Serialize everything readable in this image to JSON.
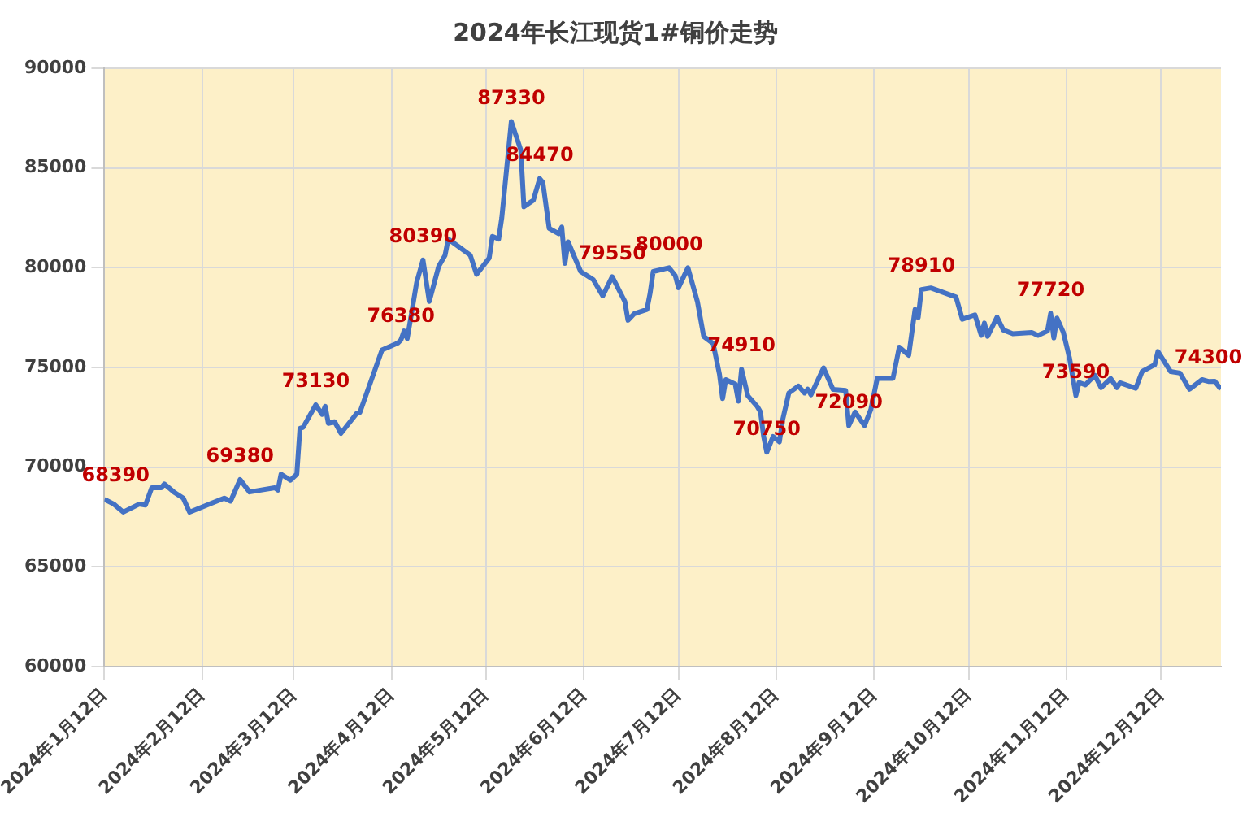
{
  "chart_data": {
    "type": "line",
    "title": "2024年长江现货1#铜价走势",
    "x": [
      "2024-01-12",
      "2024-01-15",
      "2024-01-18",
      "2024-01-23",
      "2024-01-25",
      "2024-01-27",
      "2024-01-30",
      "2024-01-31",
      "2024-02-03",
      "2024-02-06",
      "2024-02-08",
      "2024-02-19",
      "2024-02-21",
      "2024-02-24",
      "2024-02-27",
      "2024-03-06",
      "2024-03-07",
      "2024-03-08",
      "2024-03-11",
      "2024-03-13",
      "2024-03-14",
      "2024-03-15",
      "2024-03-19",
      "2024-03-21",
      "2024-03-22",
      "2024-03-23",
      "2024-03-25",
      "2024-03-27",
      "2024-04-01",
      "2024-04-02",
      "2024-04-09",
      "2024-04-14",
      "2024-04-15",
      "2024-04-16",
      "2024-04-17",
      "2024-04-18",
      "2024-04-20",
      "2024-04-22",
      "2024-04-24",
      "2024-04-27",
      "2024-04-29",
      "2024-04-30",
      "2024-05-07",
      "2024-05-09",
      "2024-05-13",
      "2024-05-14",
      "2024-05-16",
      "2024-05-17",
      "2024-05-20",
      "2024-05-23",
      "2024-05-24",
      "2024-05-27",
      "2024-05-29",
      "2024-05-30",
      "2024-06-01",
      "2024-06-04",
      "2024-06-05",
      "2024-06-06",
      "2024-06-07",
      "2024-06-11",
      "2024-06-15",
      "2024-06-18",
      "2024-06-21",
      "2024-06-25",
      "2024-06-26",
      "2024-06-28",
      "2024-07-02",
      "2024-07-03",
      "2024-07-04",
      "2024-07-09",
      "2024-07-11",
      "2024-07-12",
      "2024-07-15",
      "2024-07-18",
      "2024-07-20",
      "2024-07-23",
      "2024-07-25",
      "2024-07-26",
      "2024-07-27",
      "2024-07-30",
      "2024-07-31",
      "2024-08-01",
      "2024-08-03",
      "2024-08-06",
      "2024-08-07",
      "2024-08-08",
      "2024-08-09",
      "2024-08-11",
      "2024-08-13",
      "2024-08-14",
      "2024-08-16",
      "2024-08-19",
      "2024-08-21",
      "2024-08-22",
      "2024-08-23",
      "2024-08-27",
      "2024-08-30",
      "2024-09-03",
      "2024-09-04",
      "2024-09-06",
      "2024-09-09",
      "2024-09-11",
      "2024-09-13",
      "2024-09-18",
      "2024-09-20",
      "2024-09-23",
      "2024-09-25",
      "2024-09-26",
      "2024-09-27",
      "2024-09-30",
      "2024-10-08",
      "2024-10-10",
      "2024-10-14",
      "2024-10-16",
      "2024-10-17",
      "2024-10-18",
      "2024-10-21",
      "2024-10-23",
      "2024-10-26",
      "2024-11-01",
      "2024-11-03",
      "2024-11-06",
      "2024-11-07",
      "2024-11-08",
      "2024-11-09",
      "2024-11-11",
      "2024-11-13",
      "2024-11-15",
      "2024-11-16",
      "2024-11-18",
      "2024-11-21",
      "2024-11-23",
      "2024-11-26",
      "2024-11-28",
      "2024-11-29",
      "2024-12-04",
      "2024-12-06",
      "2024-12-10",
      "2024-12-11",
      "2024-12-15",
      "2024-12-18",
      "2024-12-21",
      "2024-12-25",
      "2024-12-27",
      "2024-12-29",
      "2024-12-31"
    ],
    "series": [
      {
        "color": "#4472c4",
        "values": [
          68390,
          68150,
          67750,
          68150,
          68100,
          68970,
          68970,
          69160,
          68760,
          68450,
          67750,
          68450,
          68300,
          69380,
          68760,
          68970,
          68850,
          69650,
          69350,
          69650,
          71950,
          72000,
          73130,
          72650,
          73050,
          72200,
          72280,
          71700,
          72700,
          72750,
          75880,
          76220,
          76380,
          76830,
          76450,
          77370,
          79270,
          80390,
          78310,
          80080,
          80630,
          81440,
          80630,
          79670,
          80490,
          81570,
          81440,
          82520,
          87330,
          85910,
          83060,
          83390,
          84470,
          84280,
          81980,
          81710,
          82040,
          80220,
          81300,
          79810,
          79400,
          78590,
          79550,
          78310,
          77370,
          77700,
          77910,
          78720,
          79810,
          80000,
          79600,
          79000,
          80000,
          78310,
          76560,
          76200,
          74660,
          73440,
          74390,
          74170,
          73310,
          74910,
          73580,
          73040,
          72770,
          71540,
          70750,
          71540,
          71270,
          72360,
          73720,
          74070,
          73720,
          73910,
          73630,
          74980,
          73900,
          73850,
          72090,
          72770,
          72090,
          72900,
          74450,
          74450,
          76020,
          75610,
          77910,
          77500,
          78910,
          78990,
          78530,
          77420,
          77640,
          76610,
          77230,
          76560,
          77530,
          76880,
          76690,
          76750,
          76610,
          76830,
          77720,
          76480,
          77480,
          76770,
          75460,
          73590,
          74250,
          74130,
          74610,
          73990,
          74450,
          73990,
          74230,
          73960,
          74800,
          75140,
          75800,
          74800,
          74720,
          73910,
          74390,
          74300,
          74310,
          73910
        ]
      }
    ],
    "xlim": [
      "2024-01-12",
      "2024-12-31"
    ],
    "xticks": [
      {
        "value": "2024-01-12",
        "label": "2024年1月12日"
      },
      {
        "value": "2024-02-12",
        "label": "2024年2月12日"
      },
      {
        "value": "2024-03-12",
        "label": "2024年3月12日"
      },
      {
        "value": "2024-04-12",
        "label": "2024年4月12日"
      },
      {
        "value": "2024-05-12",
        "label": "2024年5月12日"
      },
      {
        "value": "2024-06-12",
        "label": "2024年6月12日"
      },
      {
        "value": "2024-07-12",
        "label": "2024年7月12日"
      },
      {
        "value": "2024-08-12",
        "label": "2024年8月12日"
      },
      {
        "value": "2024-09-12",
        "label": "2024年9月12日"
      },
      {
        "value": "2024-10-12",
        "label": "2024年10月12日"
      },
      {
        "value": "2024-11-12",
        "label": "2024年11月12日"
      },
      {
        "value": "2024-12-12",
        "label": "2024年12月12日"
      }
    ],
    "ylim": [
      60000,
      90000
    ],
    "yticks": [
      60000,
      65000,
      70000,
      75000,
      80000,
      85000,
      90000
    ],
    "grid": true,
    "legend": false,
    "marker": "none",
    "line_style": "solid",
    "annotations": [
      {
        "text": "68390",
        "x": "2024-01-12",
        "y": 68390
      },
      {
        "text": "69380",
        "x": "2024-02-24",
        "y": 69380
      },
      {
        "text": "73130",
        "x": "2024-03-19",
        "y": 73130
      },
      {
        "text": "76380",
        "x": "2024-04-15",
        "y": 76380
      },
      {
        "text": "80390",
        "x": "2024-04-22",
        "y": 80390
      },
      {
        "text": "87330",
        "x": "2024-05-20",
        "y": 87330
      },
      {
        "text": "84470",
        "x": "2024-05-29",
        "y": 84470
      },
      {
        "text": "79550",
        "x": "2024-06-21",
        "y": 79550
      },
      {
        "text": "80000",
        "x": "2024-07-09",
        "y": 80000
      },
      {
        "text": "74910",
        "x": "2024-08-01",
        "y": 74910
      },
      {
        "text": "70750",
        "x": "2024-08-09",
        "y": 70750
      },
      {
        "text": "72090",
        "x": "2024-09-04",
        "y": 72090
      },
      {
        "text": "78910",
        "x": "2024-09-27",
        "y": 78910
      },
      {
        "text": "77720",
        "x": "2024-11-07",
        "y": 77720
      },
      {
        "text": "73590",
        "x": "2024-11-15",
        "y": 73590
      },
      {
        "text": "74300",
        "x": "2024-12-27",
        "y": 74300
      }
    ]
  }
}
